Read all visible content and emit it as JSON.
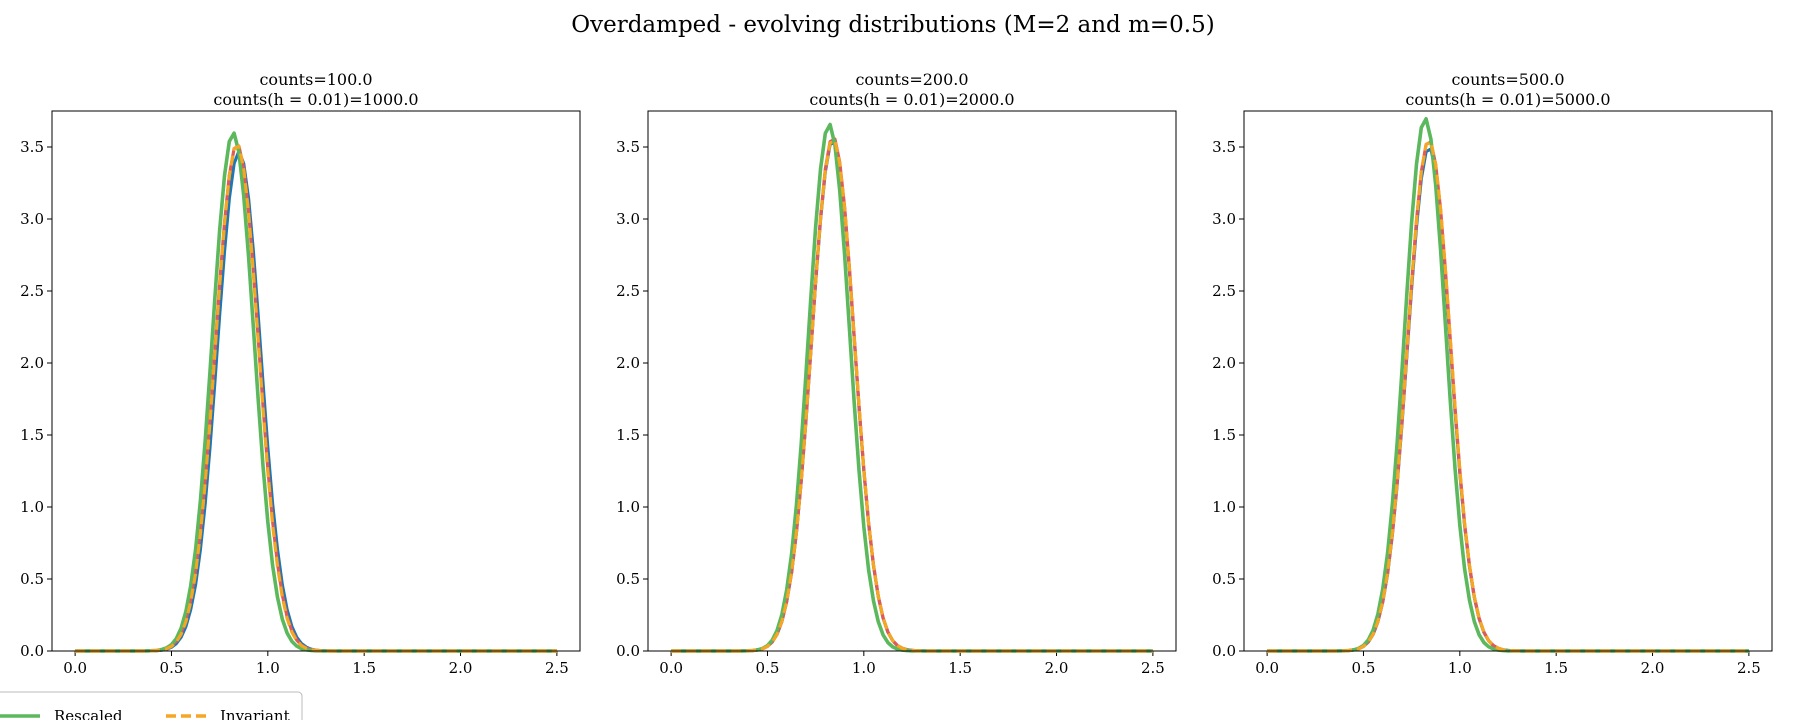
{
  "title": "Overdamped - evolving distributions (M=2 and m=0.5)",
  "colors": {
    "rescaled": "#5cb85c",
    "invariant": "#f5a623",
    "blue": "#1f77b4",
    "red": "#e05a5a",
    "axes": "#000000"
  },
  "legend": {
    "placement": "bottom-left",
    "items": [
      {
        "label": "Rescaled",
        "color": "#5cb85c",
        "style": "solid"
      },
      {
        "label": "Invariant",
        "color": "#f5a623",
        "style": "dashed"
      }
    ]
  },
  "chart_data": [
    {
      "type": "line",
      "title_line1": "counts=100.0",
      "title_line2": "counts(h = 0.01)=1000.0",
      "xlim": [
        -0.12,
        2.62
      ],
      "ylim": [
        0,
        3.75
      ],
      "xticks": [
        "0.0",
        "0.5",
        "1.0",
        "1.5",
        "2.0",
        "2.5"
      ],
      "yticks": [
        "0.0",
        "0.5",
        "1.0",
        "1.5",
        "2.0",
        "2.5",
        "3.0",
        "3.5"
      ],
      "grid": false,
      "series": [
        {
          "key": "blue",
          "mu": 0.85,
          "sigma": 0.112,
          "peak": 3.47,
          "style": "solid"
        },
        {
          "key": "red",
          "mu": 0.84,
          "sigma": 0.112,
          "peak": 3.52,
          "style": "solid"
        },
        {
          "key": "rescaled",
          "mu": 0.82,
          "sigma": 0.108,
          "peak": 3.6,
          "style": "solid"
        },
        {
          "key": "invariant",
          "mu": 0.84,
          "sigma": 0.111,
          "peak": 3.52,
          "style": "dashed"
        }
      ]
    },
    {
      "type": "line",
      "title_line1": "counts=200.0",
      "title_line2": "counts(h = 0.01)=2000.0",
      "xlim": [
        -0.12,
        2.62
      ],
      "ylim": [
        0,
        3.75
      ],
      "xticks": [
        "0.0",
        "0.5",
        "1.0",
        "1.5",
        "2.0",
        "2.5"
      ],
      "yticks": [
        "0.0",
        "0.5",
        "1.0",
        "1.5",
        "2.0",
        "2.5",
        "3.0",
        "3.5"
      ],
      "grid": false,
      "series": [
        {
          "key": "blue",
          "mu": 0.84,
          "sigma": 0.111,
          "peak": 3.55,
          "style": "solid"
        },
        {
          "key": "red",
          "mu": 0.84,
          "sigma": 0.111,
          "peak": 3.57,
          "style": "solid"
        },
        {
          "key": "rescaled",
          "mu": 0.82,
          "sigma": 0.106,
          "peak": 3.66,
          "style": "solid"
        },
        {
          "key": "invariant",
          "mu": 0.84,
          "sigma": 0.111,
          "peak": 3.56,
          "style": "dashed"
        }
      ]
    },
    {
      "type": "line",
      "title_line1": "counts=500.0",
      "title_line2": "counts(h = 0.01)=5000.0",
      "xlim": [
        -0.12,
        2.62
      ],
      "ylim": [
        0,
        3.75
      ],
      "xticks": [
        "0.0",
        "0.5",
        "1.0",
        "1.5",
        "2.0",
        "2.5"
      ],
      "yticks": [
        "0.0",
        "0.5",
        "1.0",
        "1.5",
        "2.0",
        "2.5",
        "3.0",
        "3.5"
      ],
      "grid": false,
      "series": [
        {
          "key": "blue",
          "mu": 0.84,
          "sigma": 0.111,
          "peak": 3.5,
          "style": "solid"
        },
        {
          "key": "red",
          "mu": 0.84,
          "sigma": 0.111,
          "peak": 3.55,
          "style": "solid"
        },
        {
          "key": "rescaled",
          "mu": 0.82,
          "sigma": 0.106,
          "peak": 3.7,
          "style": "solid"
        },
        {
          "key": "invariant",
          "mu": 0.84,
          "sigma": 0.111,
          "peak": 3.55,
          "style": "dashed"
        }
      ]
    }
  ]
}
